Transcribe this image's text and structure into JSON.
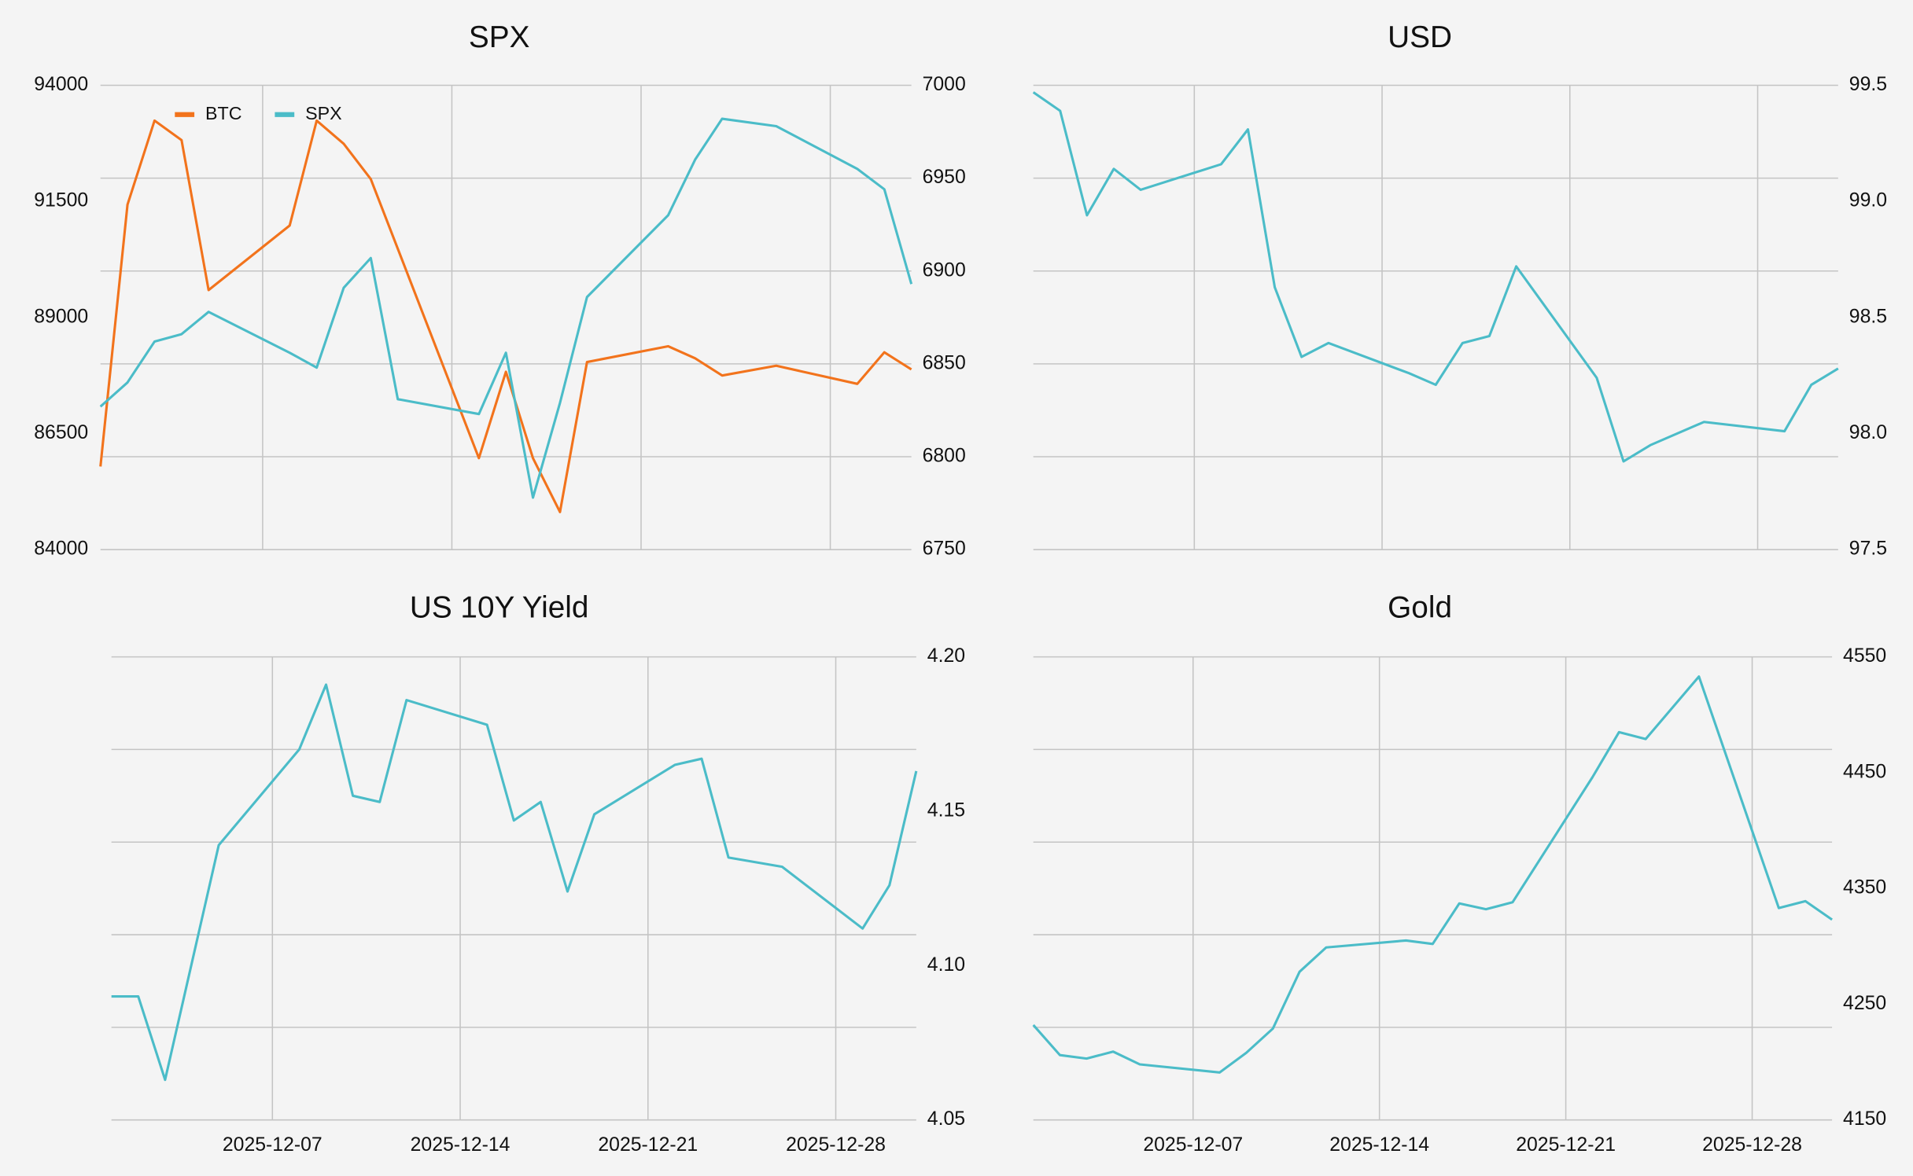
{
  "chart_data": [
    {
      "type": "line",
      "title": "SPX",
      "x": [
        "2025-12-01",
        "2025-12-02",
        "2025-12-03",
        "2025-12-04",
        "2025-12-05",
        "2025-12-08",
        "2025-12-09",
        "2025-12-10",
        "2025-12-11",
        "2025-12-12",
        "2025-12-15",
        "2025-12-16",
        "2025-12-17",
        "2025-12-18",
        "2025-12-19",
        "2025-12-22",
        "2025-12-23",
        "2025-12-24",
        "2025-12-26",
        "2025-12-29",
        "2025-12-30",
        "2025-12-31"
      ],
      "xlim": [
        "2025-12-01",
        "2025-12-31"
      ],
      "xticks": [
        "2025-12-07",
        "2025-12-14",
        "2025-12-21",
        "2025-12-28"
      ],
      "show_xtick_labels": false,
      "ylim": [
        84000,
        94000
      ],
      "yticks": [
        84000,
        86500,
        89000,
        91500,
        94000
      ],
      "y2lim": [
        6750,
        7000
      ],
      "y2ticks": [
        6750,
        6800,
        6850,
        6900,
        6950,
        7000
      ],
      "grid": true,
      "legend": "upper left",
      "series": [
        {
          "name": "BTC",
          "color": "#f2731c",
          "values": [
            85790,
            91430,
            93240,
            92820,
            89590,
            90980,
            93240,
            92740,
            91980,
            90480,
            85970,
            87830,
            85970,
            84810,
            88040,
            88380,
            88120,
            87750,
            87960,
            87570,
            88250,
            87880
          ]
        },
        {
          "name": "SPX",
          "color": "#4bbcc8",
          "axis": "y2",
          "values": [
            6827,
            6840,
            6862,
            6866,
            6878,
            6856,
            6848,
            6891,
            6907,
            6831,
            6823,
            6856,
            6778,
            6829,
            6886,
            6930,
            6960,
            6982,
            6978,
            6955,
            6944,
            6893
          ]
        }
      ]
    },
    {
      "type": "line",
      "title": "USD",
      "x": [
        "2025-12-01",
        "2025-12-02",
        "2025-12-03",
        "2025-12-04",
        "2025-12-05",
        "2025-12-08",
        "2025-12-09",
        "2025-12-10",
        "2025-12-11",
        "2025-12-12",
        "2025-12-15",
        "2025-12-16",
        "2025-12-17",
        "2025-12-18",
        "2025-12-19",
        "2025-12-22",
        "2025-12-23",
        "2025-12-24",
        "2025-12-26",
        "2025-12-29",
        "2025-12-30",
        "2025-12-31"
      ],
      "xlim": [
        "2025-12-01",
        "2025-12-31"
      ],
      "xticks": [
        "2025-12-07",
        "2025-12-14",
        "2025-12-21",
        "2025-12-28"
      ],
      "show_xtick_labels": false,
      "y2lim": [
        97.5,
        99.5
      ],
      "y2ticks": [
        97.5,
        {
          "value": 98,
          "label": "98.0"
        },
        98.5,
        {
          "value": 99,
          "label": "99.0"
        },
        99.5
      ],
      "grid": true,
      "series": [
        {
          "name": "USD",
          "color": "#4bbcc8",
          "axis": "y2",
          "values": [
            99.47,
            99.39,
            98.94,
            99.14,
            99.05,
            99.16,
            99.31,
            98.63,
            98.33,
            98.39,
            98.26,
            98.21,
            98.39,
            98.42,
            98.72,
            98.24,
            97.88,
            97.95,
            98.05,
            98.01,
            98.21,
            98.28
          ]
        }
      ]
    },
    {
      "type": "line",
      "title": "US 10Y Yield",
      "x": [
        "2025-12-01",
        "2025-12-02",
        "2025-12-03",
        "2025-12-04",
        "2025-12-05",
        "2025-12-08",
        "2025-12-09",
        "2025-12-10",
        "2025-12-11",
        "2025-12-12",
        "2025-12-15",
        "2025-12-16",
        "2025-12-17",
        "2025-12-18",
        "2025-12-19",
        "2025-12-22",
        "2025-12-23",
        "2025-12-24",
        "2025-12-26",
        "2025-12-29",
        "2025-12-30",
        "2025-12-31"
      ],
      "xlim": [
        "2025-12-01",
        "2025-12-31"
      ],
      "xticks": [
        "2025-12-07",
        "2025-12-14",
        "2025-12-21",
        "2025-12-28"
      ],
      "show_xtick_labels": true,
      "y2lim": [
        4.05,
        4.2
      ],
      "y2ticks": [
        4.05,
        {
          "value": 4.1,
          "label": "4.10"
        },
        4.15,
        {
          "value": 4.2,
          "label": "4.20"
        }
      ],
      "grid": true,
      "series": [
        {
          "name": "US 10Y Yield",
          "color": "#4bbcc8",
          "axis": "y2",
          "values": [
            4.09,
            4.09,
            4.063,
            4.101,
            4.139,
            4.17,
            4.191,
            4.155,
            4.153,
            4.186,
            4.178,
            4.147,
            4.153,
            4.124,
            4.149,
            4.165,
            4.167,
            4.135,
            4.132,
            4.112,
            4.126,
            4.163
          ]
        }
      ]
    },
    {
      "type": "line",
      "title": "Gold",
      "x": [
        "2025-12-01",
        "2025-12-02",
        "2025-12-03",
        "2025-12-04",
        "2025-12-05",
        "2025-12-08",
        "2025-12-09",
        "2025-12-10",
        "2025-12-11",
        "2025-12-12",
        "2025-12-15",
        "2025-12-16",
        "2025-12-17",
        "2025-12-18",
        "2025-12-19",
        "2025-12-22",
        "2025-12-23",
        "2025-12-24",
        "2025-12-26",
        "2025-12-29",
        "2025-12-30",
        "2025-12-31"
      ],
      "xlim": [
        "2025-12-01",
        "2025-12-31"
      ],
      "xticks": [
        "2025-12-07",
        "2025-12-14",
        "2025-12-21",
        "2025-12-28"
      ],
      "show_xtick_labels": true,
      "y2lim": [
        4150,
        4550
      ],
      "y2ticks": [
        4150,
        4250,
        4350,
        4450,
        4550
      ],
      "grid": true,
      "series": [
        {
          "name": "Gold",
          "color": "#4bbcc8",
          "axis": "y2",
          "values": [
            4232,
            4206,
            4203,
            4209,
            4198,
            4191,
            4208,
            4229,
            4278,
            4299,
            4305,
            4302,
            4337,
            4332,
            4338,
            4446,
            4485,
            4479,
            4533,
            4333,
            4339,
            4323
          ]
        }
      ]
    }
  ]
}
